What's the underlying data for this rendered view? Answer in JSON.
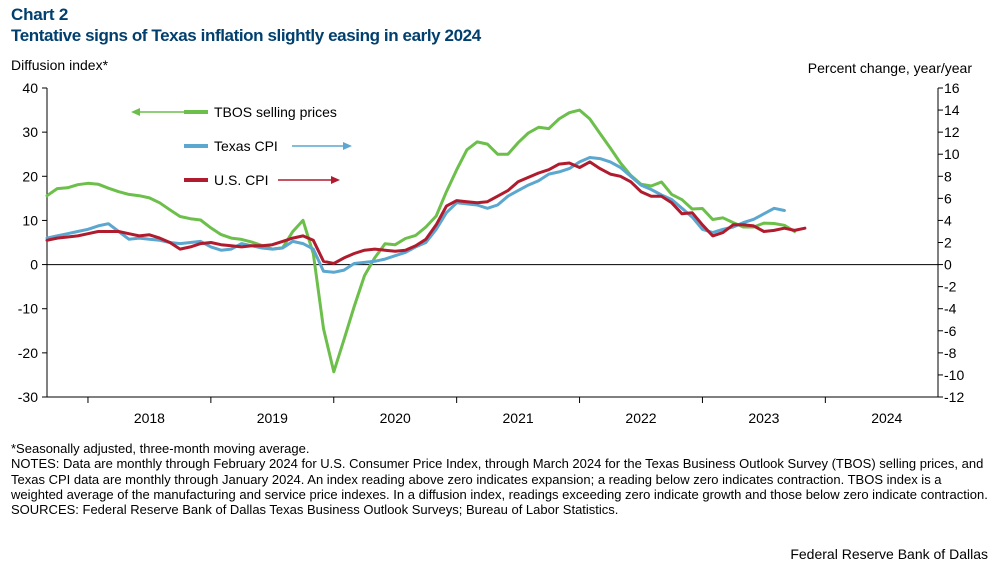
{
  "header": {
    "chart_label": "Chart 2",
    "title": "Tentative signs of Texas inflation slightly easing in early 2024"
  },
  "notes": {
    "footnote": "*Seasonally adjusted, three-month moving average.",
    "notes_text": "NOTES: Data are monthly through February 2024 for U.S. Consumer Price Index, through March 2024 for the Texas Business Outlook Survey (TBOS) selling prices, and Texas CPI data are monthly through January 2024. An index reading above zero indicates expansion; a reading below zero indicates contraction. TBOS index is a weighted average of the manufacturing and service price indexes. In a diffusion index, readings exceeding zero indicate growth and those below zero indicate contraction.",
    "sources": "SOURCES: Federal Reserve Bank of Dallas Texas Business Outlook Surveys; Bureau of Labor Statistics.",
    "credit": "Federal Reserve Bank of Dallas"
  },
  "chart_data": {
    "type": "line",
    "left_axis": {
      "label": "Diffusion index*",
      "range": [
        -30,
        40
      ],
      "ticks": [
        40,
        30,
        20,
        10,
        0,
        -10,
        -20,
        -30
      ],
      "tick_labels": [
        "40",
        "30",
        "20",
        "10",
        "0",
        "-10",
        "-20",
        "-30"
      ]
    },
    "right_axis": {
      "label": "Percent change, year/year",
      "range": [
        -12,
        16
      ],
      "ticks": [
        16,
        14,
        12,
        10,
        8,
        6,
        4,
        2,
        0,
        -2,
        -4,
        -6,
        -8,
        -10,
        -12
      ],
      "tick_labels": [
        "16",
        "14",
        "12",
        "10",
        "8",
        "6",
        "4",
        "2",
        "0",
        "-2",
        "-4",
        "-6",
        "-8",
        "-10",
        "-12"
      ]
    },
    "x_axis": {
      "range": [
        "2017-09",
        "2024-12"
      ],
      "tick_labels": [
        "2018",
        "2019",
        "2020",
        "2021",
        "2022",
        "2023",
        "2024"
      ],
      "tick_dates": [
        "2018-07",
        "2019-07",
        "2020-07",
        "2021-07",
        "2022-07",
        "2023-07",
        "2024-07"
      ]
    },
    "grid": false,
    "legend": "inside-top-left",
    "series": [
      {
        "name": "TBOS selling prices",
        "axis": "left",
        "color": "#6cbf4a",
        "legend_arrow": "left",
        "start": "2017-09",
        "values": [
          15.6,
          17.2,
          17.4,
          18.1,
          18.4,
          18.2,
          17.3,
          16.5,
          15.9,
          15.6,
          15.1,
          14.0,
          12.4,
          10.9,
          10.4,
          10.1,
          8.3,
          6.8,
          6.0,
          5.7,
          5.1,
          4.3,
          3.5,
          3.8,
          7.5,
          10.0,
          2.5,
          -14.5,
          -24.3,
          -17.0,
          -9.5,
          -2.5,
          1.5,
          4.7,
          4.5,
          5.9,
          6.6,
          8.5,
          11.0,
          16.5,
          21.5,
          26.0,
          27.8,
          27.3,
          25.0,
          25.0,
          27.6,
          29.8,
          31.1,
          30.8,
          33.0,
          34.4,
          35.0,
          33.0,
          29.7,
          26.4,
          23.0,
          20.2,
          18.2,
          17.8,
          18.7,
          15.9,
          14.7,
          12.6,
          12.7,
          10.2,
          10.6,
          9.5,
          8.5,
          8.5,
          9.4,
          9.3,
          8.9,
          7.5
        ]
      },
      {
        "name": "Texas CPI",
        "axis": "right",
        "color": "#5ba7cf",
        "legend_arrow": "right",
        "start": "2017-09",
        "values": [
          2.4,
          2.6,
          2.8,
          3.0,
          3.2,
          3.5,
          3.7,
          3.0,
          2.3,
          2.4,
          2.3,
          2.2,
          2.0,
          1.9,
          2.0,
          2.1,
          1.6,
          1.3,
          1.4,
          1.9,
          1.7,
          1.5,
          1.4,
          1.5,
          2.1,
          1.9,
          1.4,
          -0.6,
          -0.7,
          -0.5,
          0.1,
          0.2,
          0.3,
          0.5,
          0.8,
          1.1,
          1.6,
          2.0,
          3.2,
          4.7,
          5.6,
          5.5,
          5.4,
          5.1,
          5.4,
          6.2,
          6.7,
          7.2,
          7.6,
          8.2,
          8.4,
          8.7,
          9.3,
          9.7,
          9.6,
          9.3,
          8.8,
          8.0,
          7.2,
          6.8,
          6.3,
          5.9,
          5.1,
          4.3,
          3.2,
          2.9,
          3.2,
          3.4,
          3.8,
          4.1,
          4.6,
          5.1,
          4.9
        ]
      },
      {
        "name": "U.S. CPI",
        "axis": "right",
        "color": "#b01c2e",
        "legend_arrow": "right",
        "start": "2017-09",
        "values": [
          2.2,
          2.4,
          2.5,
          2.6,
          2.8,
          3.0,
          3.0,
          3.0,
          2.8,
          2.6,
          2.7,
          2.4,
          2.0,
          1.4,
          1.6,
          1.9,
          2.0,
          1.8,
          1.7,
          1.6,
          1.7,
          1.7,
          1.8,
          2.1,
          2.4,
          2.6,
          2.2,
          0.3,
          0.1,
          0.6,
          1.0,
          1.3,
          1.4,
          1.3,
          1.2,
          1.3,
          1.7,
          2.3,
          3.6,
          5.3,
          5.8,
          5.7,
          5.6,
          5.7,
          6.2,
          6.7,
          7.5,
          7.9,
          8.3,
          8.6,
          9.1,
          9.2,
          8.8,
          9.3,
          8.7,
          8.2,
          8.0,
          7.5,
          6.6,
          6.2,
          6.2,
          5.6,
          4.6,
          4.7,
          3.6,
          2.6,
          2.9,
          3.6,
          3.6,
          3.5,
          3.0,
          3.1,
          3.3,
          3.1,
          3.3
        ]
      }
    ]
  }
}
